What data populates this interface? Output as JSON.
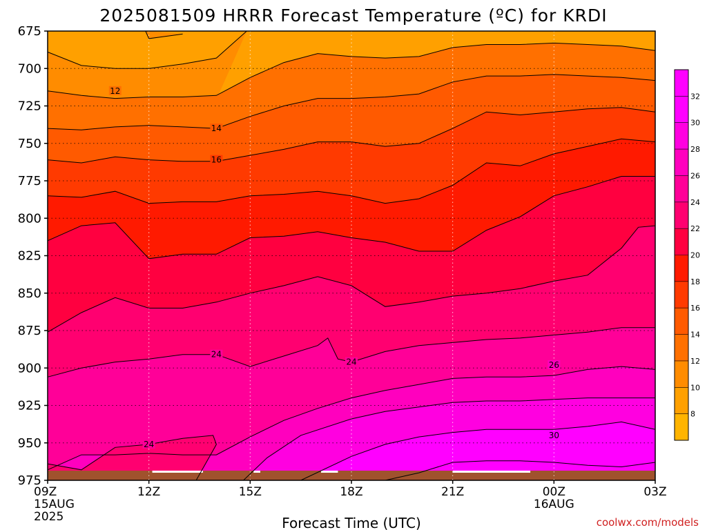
{
  "chart_data": {
    "type": "heatmap",
    "title": "2025081509 HRRR Forecast Temperature (ºC) for KRDI",
    "xlabel": "Forecast Time (UTC)",
    "ylabel": "",
    "credit": "coolwx.com/models",
    "x_ticks": [
      {
        "label": "09Z",
        "sub": [
          "15AUG",
          "2025"
        ],
        "hour": 0
      },
      {
        "label": "12Z",
        "sub": [],
        "hour": 3
      },
      {
        "label": "15Z",
        "sub": [],
        "hour": 6
      },
      {
        "label": "18Z",
        "sub": [],
        "hour": 9
      },
      {
        "label": "21Z",
        "sub": [],
        "hour": 12
      },
      {
        "label": "00Z",
        "sub": [
          "16AUG"
        ],
        "hour": 15
      },
      {
        "label": "03Z",
        "sub": [],
        "hour": 18
      }
    ],
    "xlim": [
      0,
      18
    ],
    "y_ticks": [
      675,
      700,
      725,
      750,
      775,
      800,
      825,
      850,
      875,
      900,
      925,
      950,
      975
    ],
    "ylim": [
      675,
      975
    ],
    "grid": true,
    "colorbar": {
      "levels": [
        8,
        10,
        12,
        14,
        16,
        18,
        20,
        22,
        24,
        26,
        28,
        30,
        32
      ],
      "colors": [
        "#ffb400",
        "#ffa000",
        "#ff8c00",
        "#ff7000",
        "#ff5a00",
        "#ff3a00",
        "#ff1a00",
        "#ff0040",
        "#ff0070",
        "#ff0098",
        "#ff00be",
        "#ff00e0",
        "#ff00ff",
        "#ff00ff"
      ]
    },
    "contour_labels": [
      {
        "text": "12",
        "hour": 2.0,
        "p": 715
      },
      {
        "text": "14",
        "hour": 5.0,
        "p": 740
      },
      {
        "text": "16",
        "hour": 5.0,
        "p": 761
      },
      {
        "text": "24",
        "hour": 3.0,
        "p": 951
      },
      {
        "text": "24",
        "hour": 5.0,
        "p": 891
      },
      {
        "text": "24",
        "hour": 9.0,
        "p": 896
      },
      {
        "text": "26",
        "hour": 15.0,
        "p": 898
      },
      {
        "text": "30",
        "hour": 15.0,
        "p": 945
      }
    ],
    "series": [
      {
        "temp": 10,
        "points": [
          [
            2.9,
            675
          ],
          [
            3.0,
            680
          ],
          [
            4.0,
            677
          ]
        ]
      },
      {
        "temp": 10,
        "points": [
          [
            0,
            689
          ],
          [
            1,
            698
          ],
          [
            2,
            700
          ],
          [
            3,
            700
          ],
          [
            4,
            697
          ],
          [
            5,
            693
          ],
          [
            5.9,
            675
          ]
        ]
      },
      {
        "temp": 12,
        "points": [
          [
            0,
            715
          ],
          [
            1,
            718
          ],
          [
            2,
            720
          ],
          [
            3,
            719
          ],
          [
            4,
            719
          ],
          [
            5,
            718
          ],
          [
            6,
            706
          ],
          [
            7,
            696
          ],
          [
            8,
            690
          ],
          [
            9,
            692
          ],
          [
            10,
            693
          ],
          [
            11,
            692
          ],
          [
            12,
            686
          ],
          [
            13,
            684
          ],
          [
            14,
            684
          ],
          [
            15,
            683
          ],
          [
            16,
            684
          ],
          [
            17,
            685
          ],
          [
            18,
            688
          ]
        ]
      },
      {
        "temp": 14,
        "points": [
          [
            0,
            740
          ],
          [
            1,
            741
          ],
          [
            2,
            739
          ],
          [
            3,
            738
          ],
          [
            4,
            739
          ],
          [
            5,
            740
          ],
          [
            6,
            732
          ],
          [
            7,
            725
          ],
          [
            8,
            720
          ],
          [
            9,
            720
          ],
          [
            10,
            719
          ],
          [
            11,
            717
          ],
          [
            12,
            709
          ],
          [
            13,
            705
          ],
          [
            14,
            705
          ],
          [
            15,
            704
          ],
          [
            16,
            705
          ],
          [
            17,
            706
          ],
          [
            18,
            708
          ]
        ]
      },
      {
        "temp": 16,
        "points": [
          [
            0,
            761
          ],
          [
            1,
            763
          ],
          [
            2,
            759
          ],
          [
            3,
            761
          ],
          [
            4,
            762
          ],
          [
            5,
            762
          ],
          [
            6,
            758
          ],
          [
            7,
            754
          ],
          [
            8,
            749
          ],
          [
            9,
            749
          ],
          [
            10,
            752
          ],
          [
            11,
            750
          ],
          [
            12,
            740
          ],
          [
            13,
            729
          ],
          [
            14,
            731
          ],
          [
            15,
            729
          ],
          [
            16,
            727
          ],
          [
            17,
            726
          ],
          [
            18,
            729
          ]
        ]
      },
      {
        "temp": 18,
        "points": [
          [
            0,
            785
          ],
          [
            1,
            786
          ],
          [
            2,
            782
          ],
          [
            3,
            790
          ],
          [
            4,
            789
          ],
          [
            5,
            789
          ],
          [
            6,
            785
          ],
          [
            7,
            784
          ],
          [
            8,
            782
          ],
          [
            9,
            785
          ],
          [
            10,
            790
          ],
          [
            11,
            787
          ],
          [
            12,
            778
          ],
          [
            13,
            763
          ],
          [
            14,
            765
          ],
          [
            15,
            757
          ],
          [
            16,
            752
          ],
          [
            17,
            747
          ],
          [
            18,
            749
          ]
        ]
      },
      {
        "temp": 20,
        "points": [
          [
            0,
            815
          ],
          [
            1,
            805
          ],
          [
            2,
            803
          ],
          [
            3,
            827
          ],
          [
            4,
            824
          ],
          [
            5,
            824
          ],
          [
            6,
            813
          ],
          [
            7,
            812
          ],
          [
            8,
            809
          ],
          [
            9,
            813
          ],
          [
            10,
            816
          ],
          [
            11,
            822
          ],
          [
            12,
            822
          ],
          [
            13,
            808
          ],
          [
            14,
            799
          ],
          [
            15,
            785
          ],
          [
            16,
            779
          ],
          [
            17,
            772
          ],
          [
            18,
            772
          ]
        ]
      },
      {
        "temp": 22,
        "points": [
          [
            0,
            876
          ],
          [
            1,
            863
          ],
          [
            2,
            853
          ],
          [
            3,
            860
          ],
          [
            4,
            860
          ],
          [
            5,
            856
          ],
          [
            6,
            850
          ],
          [
            7,
            845
          ],
          [
            8,
            839
          ],
          [
            9,
            845
          ],
          [
            10,
            859
          ],
          [
            11,
            856
          ],
          [
            12,
            852
          ],
          [
            13,
            850
          ],
          [
            14,
            847
          ],
          [
            15,
            842
          ],
          [
            16,
            838
          ],
          [
            17,
            820
          ],
          [
            17.5,
            806
          ],
          [
            18,
            805
          ]
        ]
      },
      {
        "temp": 24,
        "points": [
          [
            0,
            906
          ],
          [
            1,
            900
          ],
          [
            2,
            896
          ],
          [
            3,
            894
          ],
          [
            4,
            891
          ],
          [
            5,
            891
          ],
          [
            6,
            899
          ],
          [
            7,
            892
          ],
          [
            8,
            885
          ],
          [
            8.3,
            880
          ],
          [
            8.6,
            894
          ],
          [
            9,
            896
          ],
          [
            10,
            889
          ],
          [
            11,
            885
          ],
          [
            12,
            883
          ],
          [
            13,
            881
          ],
          [
            14,
            880
          ],
          [
            15,
            878
          ],
          [
            16,
            876
          ],
          [
            17,
            873
          ],
          [
            18,
            873
          ]
        ]
      },
      {
        "temp": 26,
        "points": [
          [
            0,
            968
          ],
          [
            1,
            958
          ],
          [
            2,
            958
          ],
          [
            3,
            957
          ],
          [
            4,
            958
          ],
          [
            5,
            958
          ],
          [
            6,
            946
          ],
          [
            7,
            935
          ],
          [
            8,
            927
          ],
          [
            9,
            920
          ],
          [
            10,
            915
          ],
          [
            11,
            911
          ],
          [
            12,
            907
          ],
          [
            13,
            906
          ],
          [
            14,
            906
          ],
          [
            15,
            905
          ],
          [
            16,
            901
          ],
          [
            17,
            899
          ],
          [
            18,
            901
          ]
        ]
      },
      {
        "temp": 28,
        "points": [
          [
            5.8,
            975
          ],
          [
            6.5,
            960
          ],
          [
            7.5,
            945
          ],
          [
            9,
            934
          ],
          [
            10,
            929
          ],
          [
            11,
            926
          ],
          [
            12,
            923
          ],
          [
            13,
            922
          ],
          [
            14,
            922
          ],
          [
            15,
            921
          ],
          [
            16,
            920
          ],
          [
            17,
            920
          ],
          [
            18,
            920
          ]
        ]
      },
      {
        "temp": 30,
        "points": [
          [
            7.5,
            975
          ],
          [
            9,
            959
          ],
          [
            10,
            951
          ],
          [
            11,
            946
          ],
          [
            12,
            943
          ],
          [
            13,
            941
          ],
          [
            14,
            941
          ],
          [
            15,
            941
          ],
          [
            16,
            939
          ],
          [
            17,
            936
          ],
          [
            18,
            941
          ]
        ]
      },
      {
        "temp": 32,
        "points": [
          [
            10,
            975
          ],
          [
            11,
            970
          ],
          [
            12,
            963
          ],
          [
            13,
            962
          ],
          [
            14,
            962
          ],
          [
            15,
            963
          ],
          [
            16,
            965
          ],
          [
            17,
            966
          ],
          [
            18,
            963
          ]
        ]
      },
      {
        "temp": 24,
        "points": [
          [
            0,
            964
          ],
          [
            1,
            968
          ],
          [
            2,
            953
          ],
          [
            3,
            951
          ],
          [
            4,
            947
          ],
          [
            4.9,
            945
          ],
          [
            5.0,
            951
          ],
          [
            4.9,
            955
          ],
          [
            4.4,
            975
          ]
        ]
      }
    ]
  }
}
